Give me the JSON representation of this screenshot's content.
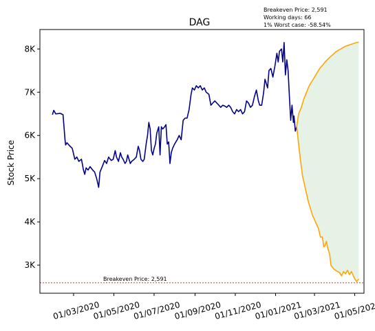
{
  "chart_data": {
    "type": "line",
    "title": "DAG",
    "xlabel": "",
    "ylabel": "Stock Price",
    "x_range": [
      "2020-01-10",
      "2021-05-15"
    ],
    "ylim": [
      2350,
      8450
    ],
    "grid": false,
    "legend": "none",
    "x_ticks": [
      {
        "date": "2020-03-01",
        "label": "01/03/2020"
      },
      {
        "date": "2020-05-01",
        "label": "01/05/2020"
      },
      {
        "date": "2020-07-01",
        "label": "01/07/2020"
      },
      {
        "date": "2020-09-01",
        "label": "01/09/2020"
      },
      {
        "date": "2020-11-01",
        "label": "01/11/2020"
      },
      {
        "date": "2021-01-01",
        "label": "01/01/2021"
      },
      {
        "date": "2021-03-01",
        "label": "01/03/2021"
      },
      {
        "date": "2021-05-01",
        "label": "01/05/2021"
      }
    ],
    "y_ticks": [
      {
        "value": 3000,
        "label": "3K"
      },
      {
        "value": 4000,
        "label": "4K"
      },
      {
        "value": 5000,
        "label": "5K"
      },
      {
        "value": 6000,
        "label": "6K"
      },
      {
        "value": 7000,
        "label": "7K"
      },
      {
        "value": 8000,
        "label": "8K"
      }
    ],
    "colors": {
      "history": "#00008b",
      "forecast": "#ffa500",
      "band": "#e6f2e6",
      "breakeven": "#ff0000"
    },
    "breakeven": {
      "value": 2591,
      "label": "Breakeven Price: 2,591"
    },
    "notes": [
      "Breakeven Price: 2,591",
      "Working days: 66",
      "1% Worst case: -58.54%"
    ],
    "series": [
      {
        "key": "history",
        "points": [
          [
            "2020-01-29",
            6480
          ],
          [
            "2020-01-31",
            6580
          ],
          [
            "2020-02-03",
            6500
          ],
          [
            "2020-02-10",
            6510
          ],
          [
            "2020-02-14",
            6480
          ],
          [
            "2020-02-17",
            5900
          ],
          [
            "2020-02-18",
            5780
          ],
          [
            "2020-02-20",
            5830
          ],
          [
            "2020-02-24",
            5760
          ],
          [
            "2020-02-28",
            5700
          ],
          [
            "2020-03-03",
            5450
          ],
          [
            "2020-03-06",
            5500
          ],
          [
            "2020-03-09",
            5400
          ],
          [
            "2020-03-13",
            5450
          ],
          [
            "2020-03-16",
            5200
          ],
          [
            "2020-03-18",
            5100
          ],
          [
            "2020-03-20",
            5250
          ],
          [
            "2020-03-23",
            5200
          ],
          [
            "2020-03-26",
            5280
          ],
          [
            "2020-03-30",
            5200
          ],
          [
            "2020-04-02",
            5150
          ],
          [
            "2020-04-05",
            5000
          ],
          [
            "2020-04-08",
            4800
          ],
          [
            "2020-04-10",
            5150
          ],
          [
            "2020-04-14",
            5300
          ],
          [
            "2020-04-17",
            5420
          ],
          [
            "2020-04-20",
            5350
          ],
          [
            "2020-04-23",
            5500
          ],
          [
            "2020-04-27",
            5420
          ],
          [
            "2020-04-30",
            5450
          ],
          [
            "2020-05-03",
            5650
          ],
          [
            "2020-05-05",
            5500
          ],
          [
            "2020-05-08",
            5400
          ],
          [
            "2020-05-11",
            5600
          ],
          [
            "2020-05-13",
            5500
          ],
          [
            "2020-05-15",
            5450
          ],
          [
            "2020-05-18",
            5350
          ],
          [
            "2020-05-20",
            5400
          ],
          [
            "2020-05-22",
            5550
          ],
          [
            "2020-05-26",
            5350
          ],
          [
            "2020-05-28",
            5400
          ],
          [
            "2020-06-01",
            5450
          ],
          [
            "2020-06-04",
            5500
          ],
          [
            "2020-06-07",
            5750
          ],
          [
            "2020-06-09",
            5650
          ],
          [
            "2020-06-11",
            5450
          ],
          [
            "2020-06-14",
            5400
          ],
          [
            "2020-06-16",
            5450
          ],
          [
            "2020-06-19",
            5800
          ],
          [
            "2020-06-21",
            6000
          ],
          [
            "2020-06-23",
            6300
          ],
          [
            "2020-06-25",
            6150
          ],
          [
            "2020-06-27",
            5650
          ],
          [
            "2020-06-29",
            5550
          ],
          [
            "2020-07-01",
            5700
          ],
          [
            "2020-07-03",
            5800
          ],
          [
            "2020-07-05",
            6050
          ],
          [
            "2020-07-08",
            6200
          ],
          [
            "2020-07-10",
            5550
          ],
          [
            "2020-07-12",
            6200
          ],
          [
            "2020-07-14",
            6150
          ],
          [
            "2020-07-17",
            6200
          ],
          [
            "2020-07-19",
            6250
          ],
          [
            "2020-07-21",
            5800
          ],
          [
            "2020-07-23",
            5850
          ],
          [
            "2020-07-25",
            5350
          ],
          [
            "2020-07-27",
            5600
          ],
          [
            "2020-07-29",
            5700
          ],
          [
            "2020-08-01",
            5800
          ],
          [
            "2020-08-03",
            5850
          ],
          [
            "2020-08-05",
            5900
          ],
          [
            "2020-08-08",
            6000
          ],
          [
            "2020-08-11",
            5900
          ],
          [
            "2020-08-14",
            6350
          ],
          [
            "2020-08-17",
            6400
          ],
          [
            "2020-08-20",
            6400
          ],
          [
            "2020-08-23",
            6600
          ],
          [
            "2020-08-26",
            6950
          ],
          [
            "2020-08-28",
            7100
          ],
          [
            "2020-08-31",
            7050
          ],
          [
            "2020-09-03",
            7150
          ],
          [
            "2020-09-06",
            7100
          ],
          [
            "2020-09-09",
            7150
          ],
          [
            "2020-09-12",
            7050
          ],
          [
            "2020-09-15",
            7100
          ],
          [
            "2020-09-18",
            7000
          ],
          [
            "2020-09-22",
            6950
          ],
          [
            "2020-09-25",
            6700
          ],
          [
            "2020-09-28",
            6750
          ],
          [
            "2020-10-01",
            6800
          ],
          [
            "2020-10-04",
            6750
          ],
          [
            "2020-10-07",
            6700
          ],
          [
            "2020-10-10",
            6650
          ],
          [
            "2020-10-13",
            6700
          ],
          [
            "2020-10-16",
            6680
          ],
          [
            "2020-10-19",
            6650
          ],
          [
            "2020-10-22",
            6700
          ],
          [
            "2020-10-25",
            6650
          ],
          [
            "2020-10-28",
            6550
          ],
          [
            "2020-10-31",
            6500
          ],
          [
            "2020-11-03",
            6600
          ],
          [
            "2020-11-06",
            6550
          ],
          [
            "2020-11-09",
            6600
          ],
          [
            "2020-11-12",
            6500
          ],
          [
            "2020-11-15",
            6550
          ],
          [
            "2020-11-18",
            6800
          ],
          [
            "2020-11-21",
            6750
          ],
          [
            "2020-11-24",
            6650
          ],
          [
            "2020-11-27",
            6700
          ],
          [
            "2020-11-30",
            6900
          ],
          [
            "2020-12-03",
            7050
          ],
          [
            "2020-12-06",
            6800
          ],
          [
            "2020-12-08",
            6700
          ],
          [
            "2020-12-11",
            6700
          ],
          [
            "2020-12-14",
            7000
          ],
          [
            "2020-12-16",
            7300
          ],
          [
            "2020-12-18",
            7200
          ],
          [
            "2020-12-20",
            7100
          ],
          [
            "2020-12-22",
            7500
          ],
          [
            "2020-12-25",
            7550
          ],
          [
            "2020-12-28",
            7350
          ],
          [
            "2020-12-31",
            7600
          ],
          [
            "2021-01-03",
            7900
          ],
          [
            "2021-01-05",
            7700
          ],
          [
            "2021-01-07",
            7950
          ],
          [
            "2021-01-10",
            8000
          ],
          [
            "2021-01-12",
            7700
          ],
          [
            "2021-01-14",
            8150
          ],
          [
            "2021-01-16",
            7400
          ],
          [
            "2021-01-18",
            7750
          ],
          [
            "2021-01-20",
            7500
          ],
          [
            "2021-01-22",
            6900
          ],
          [
            "2021-01-24",
            6350
          ],
          [
            "2021-01-26",
            6700
          ],
          [
            "2021-01-28",
            6300
          ],
          [
            "2021-01-29",
            6450
          ],
          [
            "2021-01-31",
            6100
          ],
          [
            "2021-02-02",
            6200
          ]
        ]
      },
      {
        "key": "forecast",
        "role": "upper",
        "points": [
          [
            "2021-02-02",
            6200
          ],
          [
            "2021-02-05",
            6500
          ],
          [
            "2021-02-09",
            6650
          ],
          [
            "2021-02-13",
            6850
          ],
          [
            "2021-02-17",
            7000
          ],
          [
            "2021-02-21",
            7150
          ],
          [
            "2021-02-25",
            7250
          ],
          [
            "2021-03-01",
            7350
          ],
          [
            "2021-03-05",
            7450
          ],
          [
            "2021-03-09",
            7550
          ],
          [
            "2021-03-13",
            7620
          ],
          [
            "2021-03-17",
            7700
          ],
          [
            "2021-03-21",
            7760
          ],
          [
            "2021-03-25",
            7820
          ],
          [
            "2021-03-29",
            7870
          ],
          [
            "2021-04-02",
            7930
          ],
          [
            "2021-04-06",
            7970
          ],
          [
            "2021-04-10",
            8000
          ],
          [
            "2021-04-14",
            8040
          ],
          [
            "2021-04-18",
            8070
          ],
          [
            "2021-04-22",
            8090
          ],
          [
            "2021-04-26",
            8110
          ],
          [
            "2021-04-30",
            8130
          ],
          [
            "2021-05-04",
            8150
          ],
          [
            "2021-05-07",
            8160
          ]
        ]
      },
      {
        "key": "forecast",
        "role": "lower",
        "points": [
          [
            "2021-02-02",
            6200
          ],
          [
            "2021-02-05",
            5800
          ],
          [
            "2021-02-08",
            5400
          ],
          [
            "2021-02-11",
            5050
          ],
          [
            "2021-02-14",
            4850
          ],
          [
            "2021-02-17",
            4650
          ],
          [
            "2021-02-20",
            4450
          ],
          [
            "2021-02-23",
            4300
          ],
          [
            "2021-02-26",
            4150
          ],
          [
            "2021-03-01",
            4050
          ],
          [
            "2021-03-04",
            3950
          ],
          [
            "2021-03-07",
            3850
          ],
          [
            "2021-03-10",
            3650
          ],
          [
            "2021-03-13",
            3650
          ],
          [
            "2021-03-15",
            3420
          ],
          [
            "2021-03-17",
            3450
          ],
          [
            "2021-03-19",
            3550
          ],
          [
            "2021-03-21",
            3400
          ],
          [
            "2021-03-24",
            3250
          ],
          [
            "2021-03-26",
            3000
          ],
          [
            "2021-03-28",
            2950
          ],
          [
            "2021-03-31",
            2900
          ],
          [
            "2021-04-02",
            2880
          ],
          [
            "2021-04-05",
            2850
          ],
          [
            "2021-04-08",
            2830
          ],
          [
            "2021-04-11",
            2750
          ],
          [
            "2021-04-14",
            2850
          ],
          [
            "2021-04-17",
            2800
          ],
          [
            "2021-04-20",
            2880
          ],
          [
            "2021-04-23",
            2780
          ],
          [
            "2021-04-26",
            2850
          ],
          [
            "2021-04-29",
            2750
          ],
          [
            "2021-05-01",
            2680
          ],
          [
            "2021-05-04",
            2620
          ],
          [
            "2021-05-07",
            2680
          ]
        ]
      }
    ]
  }
}
